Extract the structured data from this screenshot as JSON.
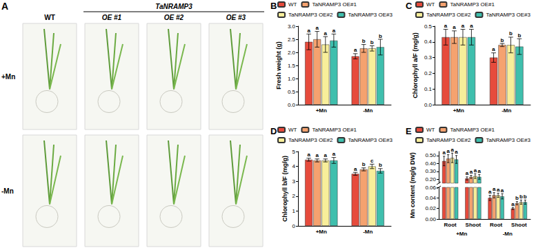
{
  "panel_a": {
    "panel": "A",
    "group_label": "TaNRAMP3",
    "columns": [
      "WT",
      "OE #1",
      "OE #2",
      "OE #3"
    ],
    "rows": [
      "+Mn",
      "-Mn"
    ]
  },
  "chart_data": [
    {
      "panel": "B",
      "type": "bar",
      "y_label": "Fresh weight (g)",
      "categories": [
        "+Mn",
        "-Mn"
      ],
      "ylim": [
        0,
        3
      ],
      "yticks": [
        {
          "value": 0,
          "label": "0.0"
        },
        0.5,
        {
          "value": 1,
          "label": "1.0"
        },
        1.5,
        {
          "value": 2,
          "label": "2.0"
        },
        2.5,
        {
          "value": 3,
          "label": "3.0"
        }
      ],
      "grid": false,
      "legend": "top",
      "series": [
        {
          "name": "WT",
          "color": "#e64b3c",
          "values": [
            2.4,
            1.85
          ],
          "errors": [
            0.3,
            0.1
          ],
          "letters": [
            "a",
            "a"
          ]
        },
        {
          "name": "TaNRAMP3 OE#1",
          "color": "#f5a26f",
          "values": [
            2.5,
            2.15
          ],
          "errors": [
            0.3,
            0.15
          ],
          "letters": [
            "a",
            "b"
          ]
        },
        {
          "name": "TaNRAMP3 OE#2",
          "color": "#f8ee9a",
          "values": [
            2.3,
            2.15
          ],
          "errors": [
            0.3,
            0.1
          ],
          "letters": [
            "a",
            "b"
          ]
        },
        {
          "name": "TaNRAMP3 OE#3",
          "color": "#3fbfad",
          "values": [
            2.45,
            2.2
          ],
          "errors": [
            0.25,
            0.3
          ],
          "letters": [
            "a",
            "b"
          ]
        }
      ]
    },
    {
      "panel": "C",
      "type": "bar",
      "y_label": "Chlorophyll a/F (mg/g)",
      "categories": [
        "+Mn",
        "-Mn"
      ],
      "ylim": [
        0,
        0.5
      ],
      "yticks": [
        {
          "value": 0,
          "label": "0.0"
        },
        0.1,
        0.2,
        0.3,
        0.4,
        0.5
      ],
      "grid": false,
      "legend": "top",
      "series": [
        {
          "name": "WT",
          "color": "#e64b3c",
          "values": [
            0.43,
            0.3
          ],
          "errors": [
            0.05,
            0.03
          ],
          "letters": [
            "a",
            "a"
          ]
        },
        {
          "name": "TaNRAMP3 OE#1",
          "color": "#f5a26f",
          "values": [
            0.43,
            0.38
          ],
          "errors": [
            0.04,
            0.01
          ],
          "letters": [
            "a",
            "b"
          ]
        },
        {
          "name": "TaNRAMP3 OE#2",
          "color": "#f8ee9a",
          "values": [
            0.43,
            0.38
          ],
          "errors": [
            0.05,
            0.05
          ],
          "letters": [
            "a",
            "b"
          ]
        },
        {
          "name": "TaNRAMP3 OE#3",
          "color": "#3fbfad",
          "values": [
            0.43,
            0.37
          ],
          "errors": [
            0.05,
            0.05
          ],
          "letters": [
            "a",
            "b"
          ]
        }
      ]
    },
    {
      "panel": "D",
      "type": "bar",
      "y_label": "Chlorophyll b/F (mg/g)",
      "categories": [
        "+Mn",
        "-Mn"
      ],
      "ylim": [
        0,
        5
      ],
      "yticks": [
        0,
        1,
        2,
        3,
        4,
        5
      ],
      "grid": false,
      "legend": "top",
      "series": [
        {
          "name": "WT",
          "color": "#e64b3c",
          "values": [
            4.45,
            3.5
          ],
          "errors": [
            0.1,
            0.1
          ],
          "letters": [
            "a",
            "a"
          ]
        },
        {
          "name": "TaNRAMP3 OE#1",
          "color": "#f5a26f",
          "values": [
            4.4,
            3.8
          ],
          "errors": [
            0.1,
            0.1
          ],
          "letters": [
            "a",
            "b"
          ]
        },
        {
          "name": "TaNRAMP3 OE#2",
          "color": "#f8ee9a",
          "values": [
            4.4,
            4.0
          ],
          "errors": [
            0.1,
            0.15
          ],
          "letters": [
            "a",
            "c"
          ]
        },
        {
          "name": "TaNRAMP3 OE#3",
          "color": "#3fbfad",
          "values": [
            4.4,
            3.7
          ],
          "errors": [
            0.2,
            0.15
          ],
          "letters": [
            "a",
            "b"
          ]
        }
      ]
    },
    {
      "panel": "E",
      "type": "bar",
      "y_label": "Mn content (mg/g DW)",
      "categories": [
        "Root",
        "Shoot",
        "Root",
        "Shoot"
      ],
      "groups": [
        "+Mn",
        "-Mn"
      ],
      "segments": [
        {
          "ylim": [
            0.15,
            0.55
          ],
          "yticks": [
            {
              "value": 0.2,
              "label": "0.20"
            },
            {
              "value": 0.3,
              "label": "0.30"
            },
            {
              "value": 0.4,
              "label": "0.40"
            },
            {
              "value": 0.5,
              "label": "0.50"
            }
          ]
        },
        {
          "ylim": [
            0,
            0.06
          ],
          "yticks": [
            {
              "value": 0,
              "label": "0.00"
            },
            {
              "value": 0.02,
              "label": "0.02"
            },
            {
              "value": 0.04,
              "label": "0.04"
            },
            {
              "value": 0.06,
              "label": "0.06"
            }
          ]
        }
      ],
      "grid": false,
      "legend": "top",
      "series": [
        {
          "name": "WT",
          "color": "#e64b3c",
          "values": [
            0.43,
            0.21,
            0.04,
            0.02
          ],
          "errors": [
            0.06,
            0.02,
            0.005,
            0.002
          ],
          "letters": [
            "a",
            "a",
            "a",
            "a"
          ]
        },
        {
          "name": "TaNRAMP3 OE#1",
          "color": "#f5a26f",
          "values": [
            0.46,
            0.23,
            0.045,
            0.03
          ],
          "errors": [
            0.05,
            0.02,
            0.005,
            0.003
          ],
          "letters": [
            "a",
            "a",
            "a",
            "b"
          ]
        },
        {
          "name": "TaNRAMP3 OE#2",
          "color": "#f8ee9a",
          "values": [
            0.47,
            0.24,
            0.045,
            0.032
          ],
          "errors": [
            0.06,
            0.03,
            0.004,
            0.004
          ],
          "letters": [
            "a",
            "a",
            "a",
            "b"
          ]
        },
        {
          "name": "TaNRAMP3 OE#3",
          "color": "#3fbfad",
          "values": [
            0.45,
            0.23,
            0.043,
            0.032
          ],
          "errors": [
            0.05,
            0.03,
            0.005,
            0.004
          ],
          "letters": [
            "a",
            "a",
            "a",
            "b"
          ]
        }
      ]
    }
  ]
}
